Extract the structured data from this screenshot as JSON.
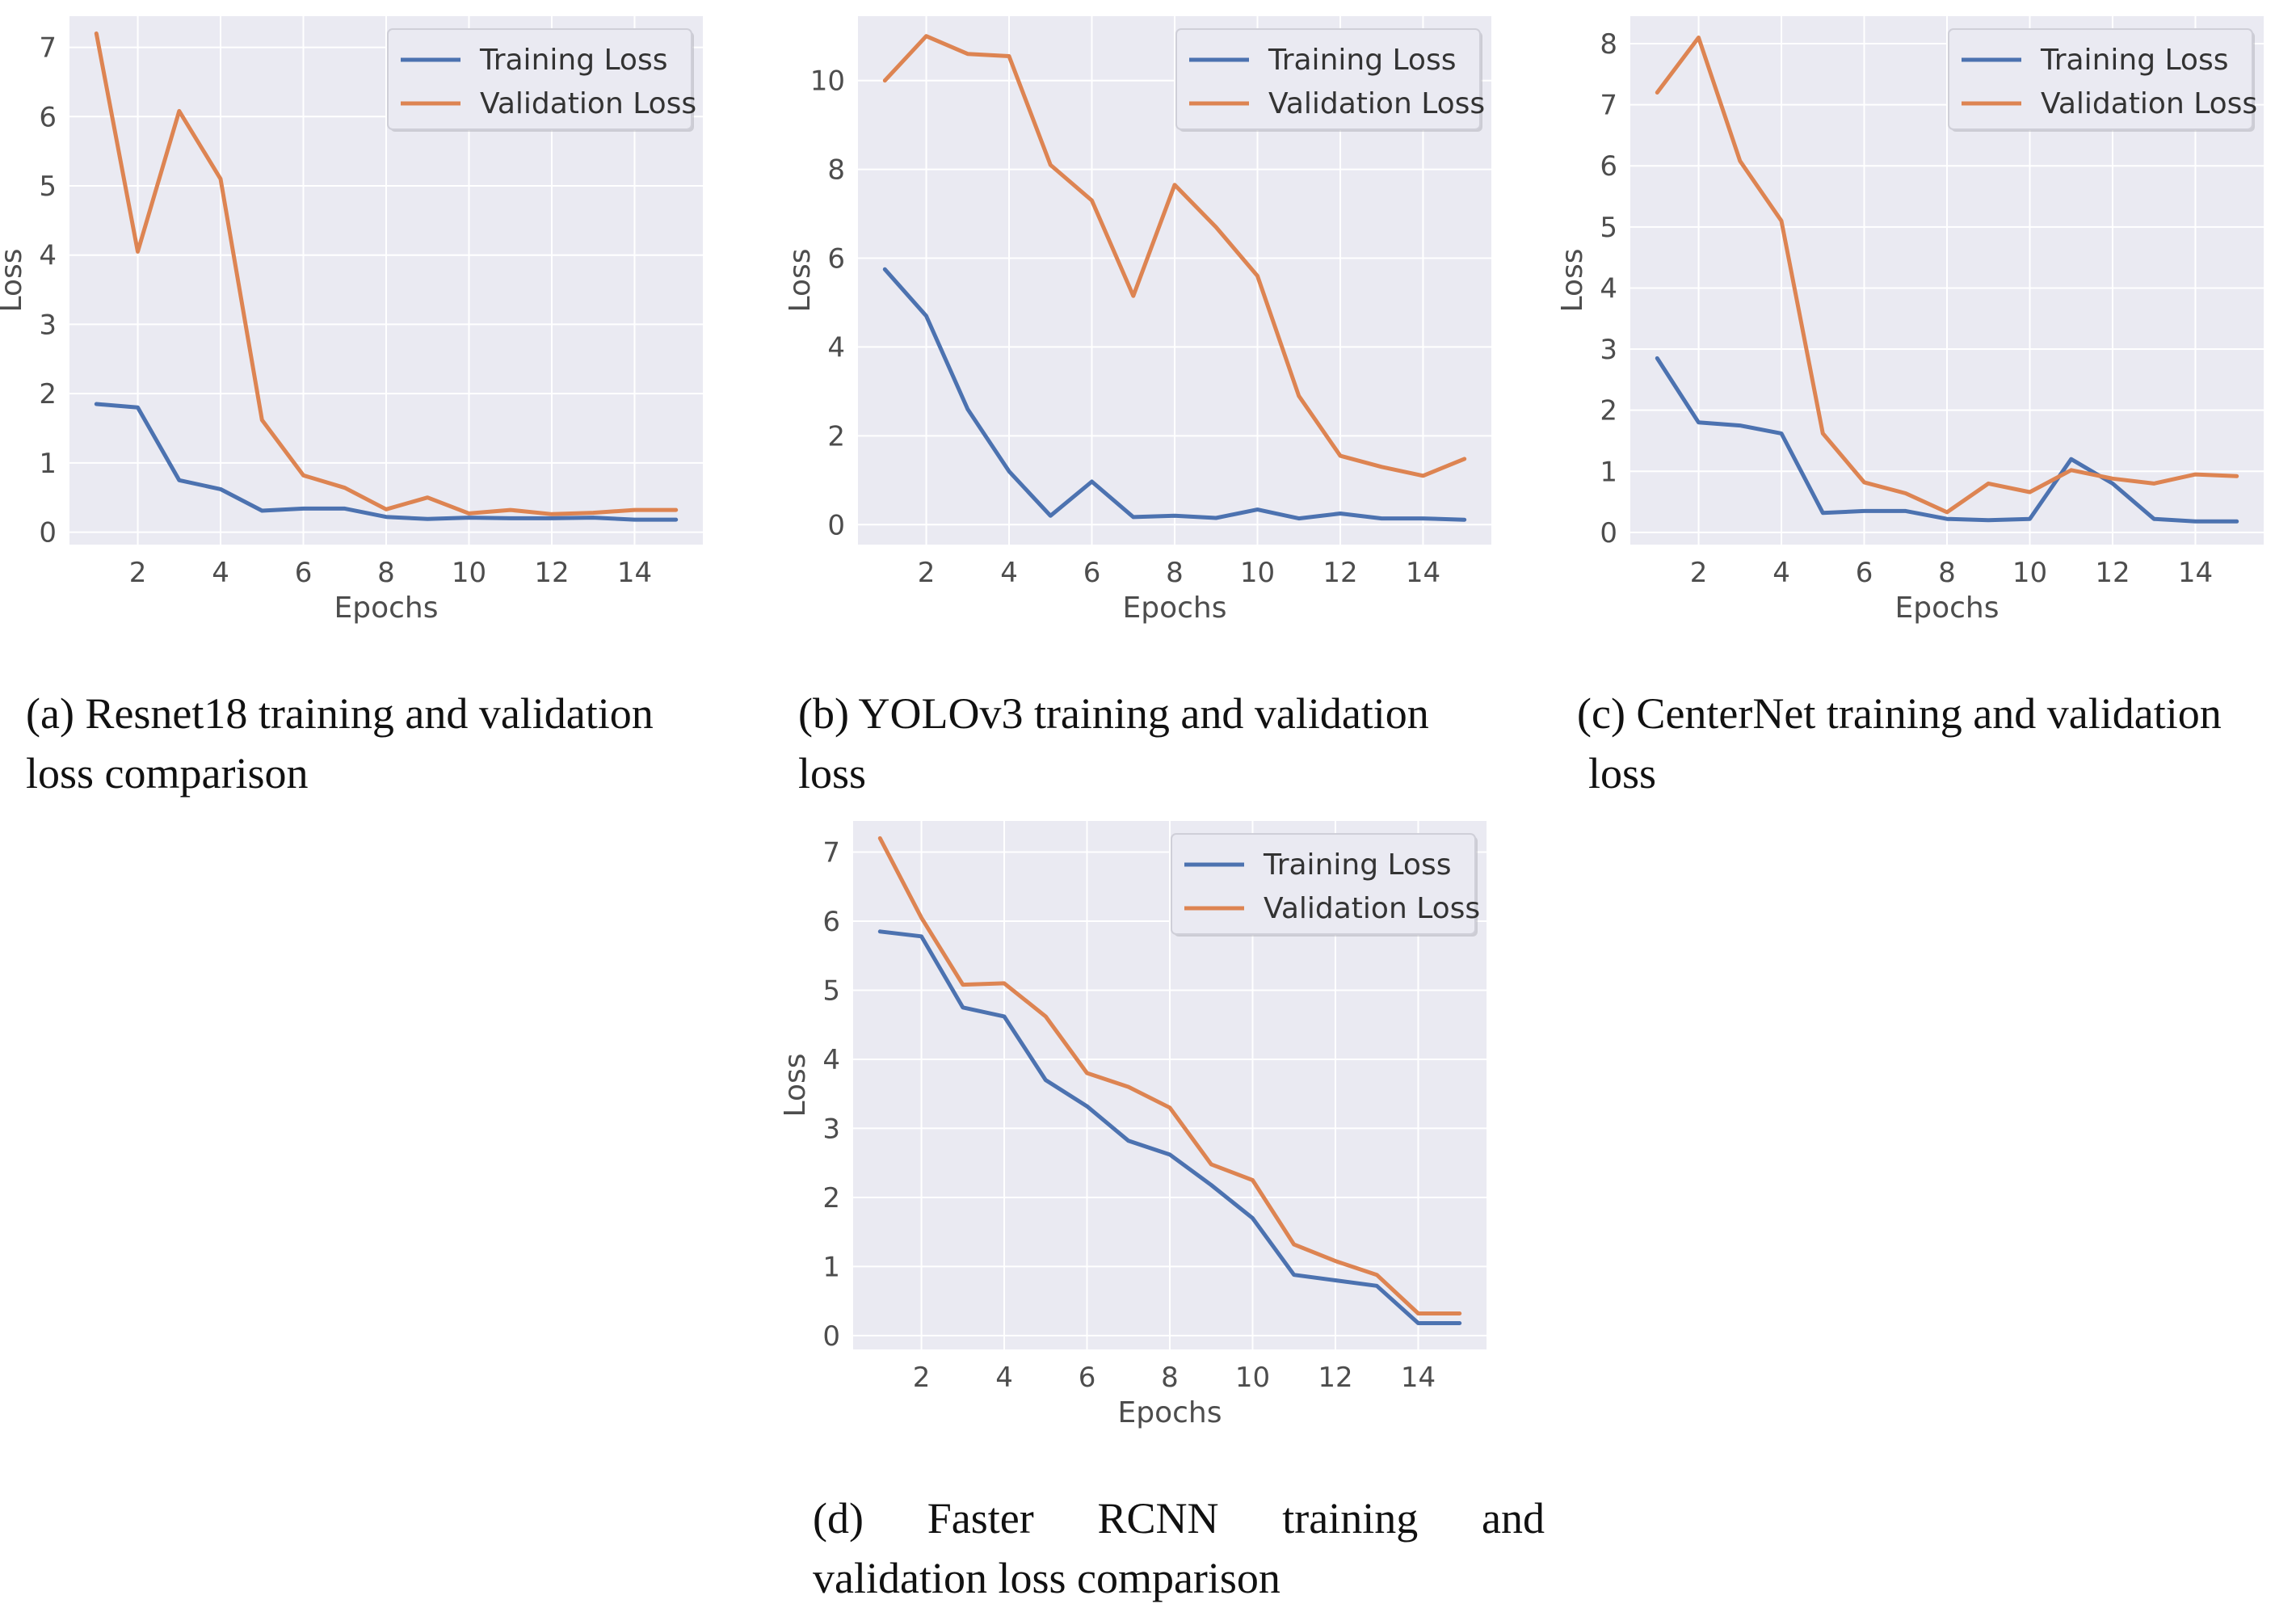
{
  "legend": {
    "training_label": "Training Loss",
    "validation_label": "Validation Loss"
  },
  "colors": {
    "training": "#4C72B0",
    "validation": "#DD8452",
    "plot_background": "#EAEAF2",
    "grid": "#FFFFFF"
  },
  "captions": {
    "a": {
      "line1": "(a) Resnet18 training and validation",
      "line2": "loss comparison"
    },
    "b": {
      "line1": "(b) YOLOv3 training and validation",
      "line2": "loss"
    },
    "c": {
      "line1": "(c) CenterNet training and validation",
      "line2": "loss"
    },
    "d": {
      "line1": "(d) Faster RCNN training and",
      "line2": "validation loss comparison"
    }
  },
  "chart_data": [
    {
      "id": "a",
      "type": "line",
      "title": "",
      "xlabel": "Epochs",
      "ylabel": "Loss",
      "xlim": [
        0.35,
        15.65
      ],
      "ylim": [
        -0.18,
        7.45
      ],
      "xticks": [
        2,
        4,
        6,
        8,
        10,
        12,
        14
      ],
      "yticks": [
        0,
        1,
        2,
        3,
        4,
        5,
        6,
        7
      ],
      "legend_position": "top-right",
      "x": [
        1,
        2,
        3,
        4,
        5,
        6,
        7,
        8,
        9,
        10,
        11,
        12,
        13,
        14,
        15
      ],
      "series": [
        {
          "name": "Training Loss",
          "values": [
            1.85,
            1.8,
            0.75,
            0.62,
            0.31,
            0.34,
            0.34,
            0.22,
            0.19,
            0.21,
            0.2,
            0.2,
            0.21,
            0.18,
            0.18
          ]
        },
        {
          "name": "Validation Loss",
          "values": [
            7.2,
            4.05,
            6.08,
            5.1,
            1.62,
            0.82,
            0.64,
            0.33,
            0.5,
            0.27,
            0.32,
            0.26,
            0.28,
            0.32,
            0.32
          ]
        }
      ]
    },
    {
      "id": "b",
      "type": "line",
      "title": "",
      "xlabel": "Epochs",
      "ylabel": "Loss",
      "xlim": [
        0.35,
        15.65
      ],
      "ylim": [
        -0.45,
        11.45
      ],
      "xticks": [
        2,
        4,
        6,
        8,
        10,
        12,
        14
      ],
      "yticks": [
        0,
        2,
        4,
        6,
        8,
        10
      ],
      "legend_position": "top-right",
      "x": [
        1,
        2,
        3,
        4,
        5,
        6,
        7,
        8,
        9,
        10,
        11,
        12,
        13,
        14,
        15
      ],
      "series": [
        {
          "name": "Training Loss",
          "values": [
            5.75,
            4.7,
            2.6,
            1.2,
            0.2,
            0.97,
            0.17,
            0.2,
            0.15,
            0.34,
            0.14,
            0.25,
            0.14,
            0.14,
            0.11
          ]
        },
        {
          "name": "Validation Loss",
          "values": [
            10.0,
            11.0,
            10.6,
            10.55,
            8.1,
            7.3,
            5.15,
            7.65,
            6.7,
            5.6,
            2.9,
            1.55,
            1.3,
            1.1,
            1.48
          ]
        }
      ]
    },
    {
      "id": "c",
      "type": "line",
      "title": "",
      "xlabel": "Epochs",
      "ylabel": "Loss",
      "xlim": [
        0.35,
        15.65
      ],
      "ylim": [
        -0.2,
        8.45
      ],
      "xticks": [
        2,
        4,
        6,
        8,
        10,
        12,
        14
      ],
      "yticks": [
        0,
        1,
        2,
        3,
        4,
        5,
        6,
        7,
        8
      ],
      "legend_position": "top-right",
      "x": [
        1,
        2,
        3,
        4,
        5,
        6,
        7,
        8,
        9,
        10,
        11,
        12,
        13,
        14,
        15
      ],
      "series": [
        {
          "name": "Training Loss",
          "values": [
            2.85,
            1.8,
            1.75,
            1.62,
            0.32,
            0.35,
            0.35,
            0.22,
            0.2,
            0.22,
            1.2,
            0.8,
            0.22,
            0.18,
            0.18
          ]
        },
        {
          "name": "Validation Loss",
          "values": [
            7.2,
            8.1,
            6.08,
            5.1,
            1.62,
            0.82,
            0.64,
            0.33,
            0.8,
            0.66,
            1.02,
            0.88,
            0.8,
            0.95,
            0.92
          ]
        }
      ]
    },
    {
      "id": "d",
      "type": "line",
      "title": "",
      "xlabel": "Epochs",
      "ylabel": "Loss",
      "xlim": [
        0.35,
        15.65
      ],
      "ylim": [
        -0.2,
        7.45
      ],
      "xticks": [
        2,
        4,
        6,
        8,
        10,
        12,
        14
      ],
      "yticks": [
        0,
        1,
        2,
        3,
        4,
        5,
        6,
        7
      ],
      "legend_position": "top-right",
      "x": [
        1,
        2,
        3,
        4,
        5,
        6,
        7,
        8,
        9,
        10,
        11,
        12,
        13,
        14,
        15
      ],
      "series": [
        {
          "name": "Training Loss",
          "values": [
            5.85,
            5.78,
            4.75,
            4.62,
            3.7,
            3.32,
            2.82,
            2.62,
            2.18,
            1.7,
            0.88,
            0.8,
            0.72,
            0.18,
            0.18
          ]
        },
        {
          "name": "Validation Loss",
          "values": [
            7.2,
            6.05,
            5.08,
            5.1,
            4.62,
            3.8,
            3.6,
            3.3,
            2.48,
            2.25,
            1.32,
            1.08,
            0.88,
            0.32,
            0.32
          ]
        }
      ]
    }
  ]
}
